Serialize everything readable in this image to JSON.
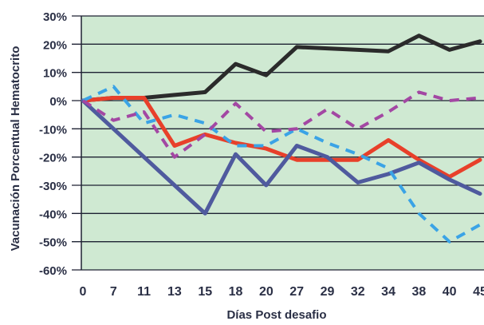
{
  "colors": {
    "plot_background": "#cfe9d2",
    "grid": "#1e2233",
    "text": "#2a2f45",
    "series_black": "#2b2b2b",
    "series_red": "#e8402a",
    "series_navy": "#4f5a9e",
    "series_cyan_dashed": "#3aa3e6",
    "series_purple_dashed": "#a347a3"
  },
  "chart_data": {
    "type": "line",
    "title": "",
    "xlabel": "Días Post desafio",
    "ylabel": "Vacunación Porcentual Hematocrito",
    "categories": [
      "0",
      "7",
      "11",
      "13",
      "15",
      "18",
      "20",
      "27",
      "29",
      "32",
      "34",
      "38",
      "40",
      "45"
    ],
    "yticks": [
      "30%",
      "20%",
      "10%",
      "0%",
      "-10%",
      "-20%",
      "-30%",
      "-40%",
      "-50%",
      "-60%"
    ],
    "ylim": [
      -60,
      30
    ],
    "grid": true,
    "legend": "none",
    "series": [
      {
        "color": "series_black",
        "style": "solid",
        "values": [
          0,
          1,
          1,
          2,
          3,
          13,
          9,
          19,
          18.5,
          18,
          17.5,
          23,
          18,
          21
        ]
      },
      {
        "color": "series_red",
        "style": "solid",
        "values": [
          0,
          1,
          1,
          -16,
          -12,
          -15,
          -17,
          -21,
          -21,
          -21,
          -14,
          -21,
          -27,
          -21
        ]
      },
      {
        "color": "series_navy",
        "style": "solid",
        "values": [
          0,
          -10,
          -20,
          -30,
          -40,
          -19,
          -30,
          -16,
          -20,
          -29,
          -26,
          -22,
          -28,
          -33
        ]
      },
      {
        "color": "series_cyan_dashed",
        "style": "dashed",
        "values": [
          0,
          5,
          -8,
          -5,
          -8,
          -16,
          -16,
          -10,
          -15,
          -19,
          -24,
          -40,
          -50,
          -44
        ]
      },
      {
        "color": "series_purple_dashed",
        "style": "dashed",
        "values": [
          0,
          -7,
          -4,
          -20,
          -12,
          -1,
          -11,
          -10,
          -3,
          -10,
          -4,
          3,
          0,
          1
        ]
      }
    ]
  }
}
